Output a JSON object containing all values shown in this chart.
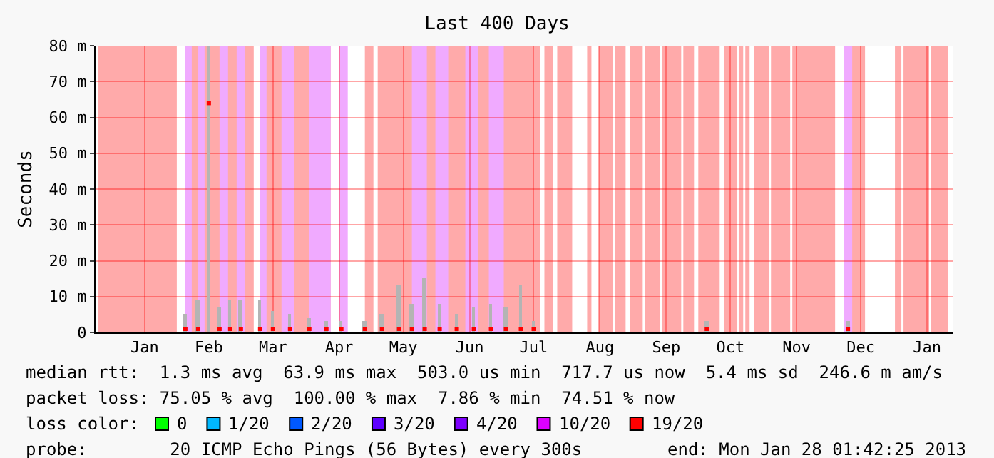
{
  "chart_data": {
    "type": "bar",
    "title": "Last 400 Days",
    "ylabel": "Seconds",
    "xlim": [
      "2011-12-24",
      "2013-01-28"
    ],
    "xticks": [
      {
        "value": "2012-01-16",
        "label": "Jan"
      },
      {
        "value": "2012-02-15",
        "label": "Feb"
      },
      {
        "value": "2012-03-16",
        "label": "Mar"
      },
      {
        "value": "2012-04-16",
        "label": "Apr"
      },
      {
        "value": "2012-05-16",
        "label": "May"
      },
      {
        "value": "2012-06-16",
        "label": "Jun"
      },
      {
        "value": "2012-07-16",
        "label": "Jul"
      },
      {
        "value": "2012-08-16",
        "label": "Aug"
      },
      {
        "value": "2012-09-16",
        "label": "Sep"
      },
      {
        "value": "2012-10-16",
        "label": "Oct"
      },
      {
        "value": "2012-11-16",
        "label": "Nov"
      },
      {
        "value": "2012-12-16",
        "label": "Dec"
      },
      {
        "value": "2013-01-16",
        "label": "Jan"
      }
    ],
    "ylim": [
      0,
      80
    ],
    "yticks": [
      0,
      {
        "value": 10,
        "label": "10 m"
      },
      {
        "value": 20,
        "label": "20 m"
      },
      {
        "value": 30,
        "label": "30 m"
      },
      {
        "value": 40,
        "label": "40 m"
      },
      {
        "value": 50,
        "label": "50 m"
      },
      {
        "value": 60,
        "label": "60 m"
      },
      {
        "value": 70,
        "label": "70 m"
      },
      {
        "value": 80,
        "label": "80 m"
      }
    ],
    "grid": true,
    "legend": "bottom",
    "legend_title": "loss color:",
    "series": [
      {
        "color": "#b4b4b4",
        "x": [
          "2012-02-04",
          "2012-02-10",
          "2012-02-15",
          "2012-02-20",
          "2012-02-25",
          "2012-03-01",
          "2012-03-10",
          "2012-03-16",
          "2012-03-24",
          "2012-04-02",
          "2012-04-10",
          "2012-04-17",
          "2012-04-28",
          "2012-05-06",
          "2012-05-14",
          "2012-05-20",
          "2012-05-26",
          "2012-06-02",
          "2012-06-10",
          "2012-06-18",
          "2012-06-26",
          "2012-07-03",
          "2012-07-10",
          "2012-07-16",
          "2012-10-05",
          "2012-12-10"
        ],
        "values": [
          5,
          9,
          80,
          7,
          9,
          9,
          9,
          6,
          5,
          4,
          3,
          3,
          3,
          5,
          13,
          8,
          15,
          8,
          5,
          7,
          8,
          7,
          13,
          3,
          3,
          3
        ]
      },
      {
        "type": "scatter",
        "marker": "square",
        "color": "#ff0000",
        "x": [
          "2012-02-04",
          "2012-02-10",
          "2012-02-15",
          "2012-02-20",
          "2012-02-25",
          "2012-03-01",
          "2012-03-10",
          "2012-03-16",
          "2012-03-24",
          "2012-04-02",
          "2012-04-10",
          "2012-04-17",
          "2012-04-28",
          "2012-05-06",
          "2012-05-14",
          "2012-05-20",
          "2012-05-26",
          "2012-06-02",
          "2012-06-10",
          "2012-06-18",
          "2012-06-26",
          "2012-07-03",
          "2012-07-10",
          "2012-07-16",
          "2012-10-05",
          "2012-12-10"
        ],
        "values": [
          1,
          1,
          64,
          1,
          1,
          1,
          1,
          1,
          1,
          1,
          1,
          1,
          1,
          1,
          1,
          1,
          1,
          1,
          1,
          1,
          1,
          1,
          1,
          1,
          1,
          1
        ]
      },
      {
        "name": "0",
        "color": "#00ff00"
      },
      {
        "name": "1/20",
        "color": "#00b8ff"
      },
      {
        "name": "2/20",
        "color": "#0059ff"
      },
      {
        "name": "3/20",
        "color": "#5e00ff"
      },
      {
        "name": "4/20",
        "color": "#7e00ff"
      },
      {
        "name": "10/20",
        "color": "#dd00ff"
      },
      {
        "name": "19/20",
        "color": "#ff0000"
      }
    ],
    "bands": [
      {
        "axis": "x",
        "from": "2011-12-25",
        "to": "2012-01-31",
        "color": "#ffaaaa"
      },
      {
        "axis": "x",
        "from": "2012-02-04",
        "to": "2012-03-07",
        "color": "#ffaaaa"
      },
      {
        "axis": "x",
        "from": "2012-03-10",
        "to": "2012-04-12",
        "color": "#ffaaaa"
      },
      {
        "axis": "x",
        "from": "2012-04-28",
        "to": "2012-05-02",
        "color": "#ffaaaa"
      },
      {
        "axis": "x",
        "from": "2012-05-04",
        "to": "2012-07-19",
        "color": "#ffaaaa"
      },
      {
        "axis": "x",
        "from": "2012-07-21",
        "to": "2012-07-25",
        "color": "#ffaaaa"
      },
      {
        "axis": "x",
        "from": "2012-07-27",
        "to": "2012-08-03",
        "color": "#ffaaaa"
      },
      {
        "axis": "x",
        "from": "2012-08-10",
        "to": "2012-08-12",
        "color": "#ffaaaa"
      },
      {
        "axis": "x",
        "from": "2012-08-15",
        "to": "2012-08-22",
        "color": "#ffaaaa"
      },
      {
        "axis": "x",
        "from": "2012-08-23",
        "to": "2012-08-28",
        "color": "#ffaaaa"
      },
      {
        "axis": "x",
        "from": "2012-08-30",
        "to": "2012-09-05",
        "color": "#ffaaaa"
      },
      {
        "axis": "x",
        "from": "2012-09-06",
        "to": "2012-09-13",
        "color": "#ffaaaa"
      },
      {
        "axis": "x",
        "from": "2012-09-14",
        "to": "2012-09-23",
        "color": "#ffaaaa"
      },
      {
        "axis": "x",
        "from": "2012-09-24",
        "to": "2012-09-29",
        "color": "#ffaaaa"
      },
      {
        "axis": "x",
        "from": "2012-10-01",
        "to": "2012-10-11",
        "color": "#ffaaaa"
      },
      {
        "axis": "x",
        "from": "2012-10-13",
        "to": "2012-10-19",
        "color": "#ffaaaa"
      },
      {
        "axis": "x",
        "from": "2012-10-20",
        "to": "2012-10-22",
        "color": "#ffaaaa"
      },
      {
        "axis": "x",
        "from": "2012-10-23",
        "to": "2012-10-25",
        "color": "#ffaaaa"
      },
      {
        "axis": "x",
        "from": "2012-10-27",
        "to": "2012-11-03",
        "color": "#ffaaaa"
      },
      {
        "axis": "x",
        "from": "2012-11-04",
        "to": "2012-11-13",
        "color": "#ffaaaa"
      },
      {
        "axis": "x",
        "from": "2012-11-14",
        "to": "2012-12-04",
        "color": "#ffaaaa"
      },
      {
        "axis": "x",
        "from": "2012-12-08",
        "to": "2012-12-18",
        "color": "#ffaaaa"
      },
      {
        "axis": "x",
        "from": "2013-01-01",
        "to": "2013-01-04",
        "color": "#ffaaaa"
      },
      {
        "axis": "x",
        "from": "2013-01-05",
        "to": "2013-01-17",
        "color": "#ffaaaa"
      },
      {
        "axis": "x",
        "from": "2013-01-18",
        "to": "2013-01-26",
        "color": "#ffaaaa"
      },
      {
        "axis": "x",
        "from": "2012-02-04",
        "to": "2012-02-07",
        "color": "#f0aaff"
      },
      {
        "axis": "x",
        "from": "2012-02-10",
        "to": "2012-02-13",
        "color": "#f0aaff"
      },
      {
        "axis": "x",
        "from": "2012-02-20",
        "to": "2012-02-24",
        "color": "#f0aaff"
      },
      {
        "axis": "x",
        "from": "2012-02-28",
        "to": "2012-03-03",
        "color": "#f0aaff"
      },
      {
        "axis": "x",
        "from": "2012-03-10",
        "to": "2012-03-13",
        "color": "#f0aaff"
      },
      {
        "axis": "x",
        "from": "2012-03-20",
        "to": "2012-03-26",
        "color": "#f0aaff"
      },
      {
        "axis": "x",
        "from": "2012-04-02",
        "to": "2012-04-12",
        "color": "#f0aaff"
      },
      {
        "axis": "x",
        "from": "2012-04-16",
        "to": "2012-04-20",
        "color": "#f0aaff"
      },
      {
        "axis": "x",
        "from": "2012-05-20",
        "to": "2012-05-27",
        "color": "#f0aaff"
      },
      {
        "axis": "x",
        "from": "2012-05-31",
        "to": "2012-06-06",
        "color": "#f0aaff"
      },
      {
        "axis": "x",
        "from": "2012-06-14",
        "to": "2012-06-20",
        "color": "#f0aaff"
      },
      {
        "axis": "x",
        "from": "2012-06-25",
        "to": "2012-07-02",
        "color": "#f0aaff"
      },
      {
        "axis": "x",
        "from": "2012-12-08",
        "to": "2012-12-12",
        "color": "#f0aaff"
      }
    ],
    "annotations": [
      "median rtt:  1.3 ms avg  63.9 ms max  503.0 us min  717.7 us now  5.4 ms sd  246.6 m am/s",
      "packet loss: 75.05 % avg  100.00 % max  7.86 % min  74.51 % now",
      "probe:        20 ICMP Echo Pings (56 Bytes) every 300s",
      "end: Mon Jan 28 01:42:25 2013"
    ]
  }
}
